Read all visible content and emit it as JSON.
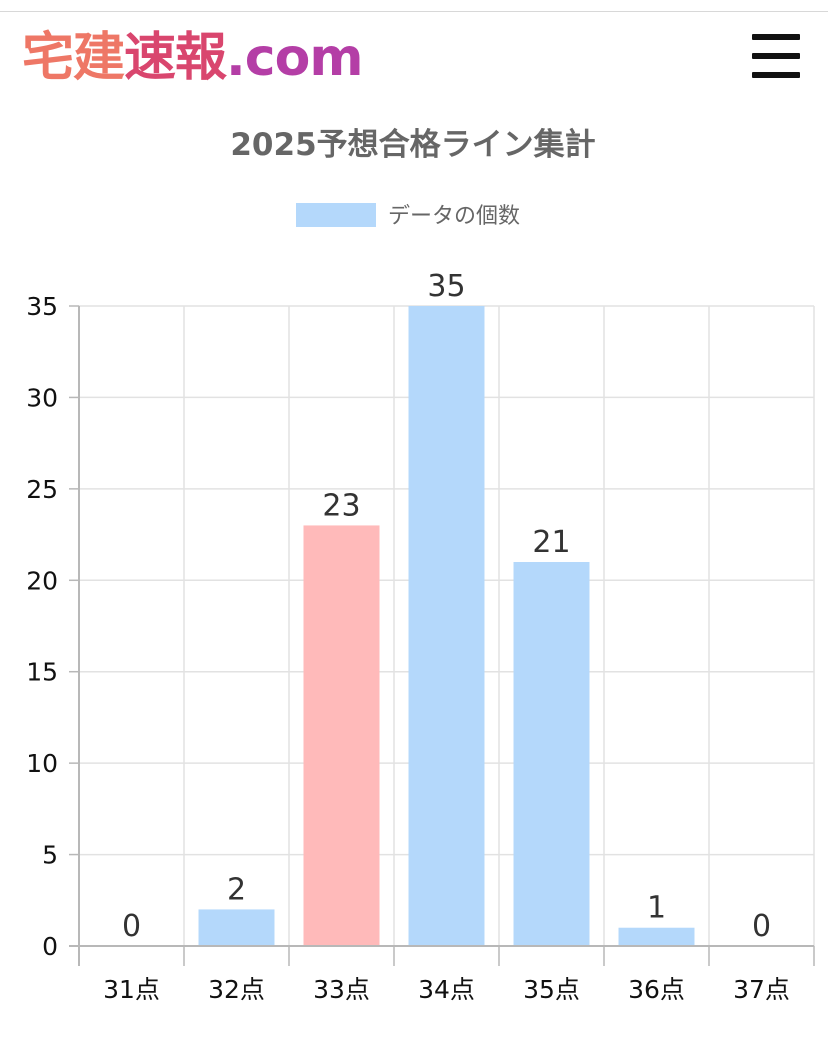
{
  "header": {
    "logo_part1": "宅建",
    "logo_part2": "速報",
    "logo_part3": ".com",
    "menu_icon": "hamburger-menu-icon"
  },
  "colors": {
    "default_bar": "#b4d8fb",
    "highlight_bar": "#ffbaba",
    "legend_swatch": "#b4d8fb",
    "grid": "#e2e2e2",
    "axis": "#b8b8b8"
  },
  "chart_data": {
    "type": "bar",
    "title": "2025予想合格ライン集計",
    "categories": [
      "31点",
      "32点",
      "33点",
      "34点",
      "35点",
      "36点",
      "37点"
    ],
    "series": [
      {
        "name": "データの個数",
        "values": [
          0,
          2,
          23,
          35,
          21,
          1,
          0
        ]
      }
    ],
    "highlight_category": "33点",
    "ylim": [
      0,
      35
    ],
    "yticks": [
      0,
      5,
      10,
      15,
      20,
      25,
      30,
      35
    ],
    "grid": true,
    "legend": "top-center",
    "data_labels": true
  }
}
